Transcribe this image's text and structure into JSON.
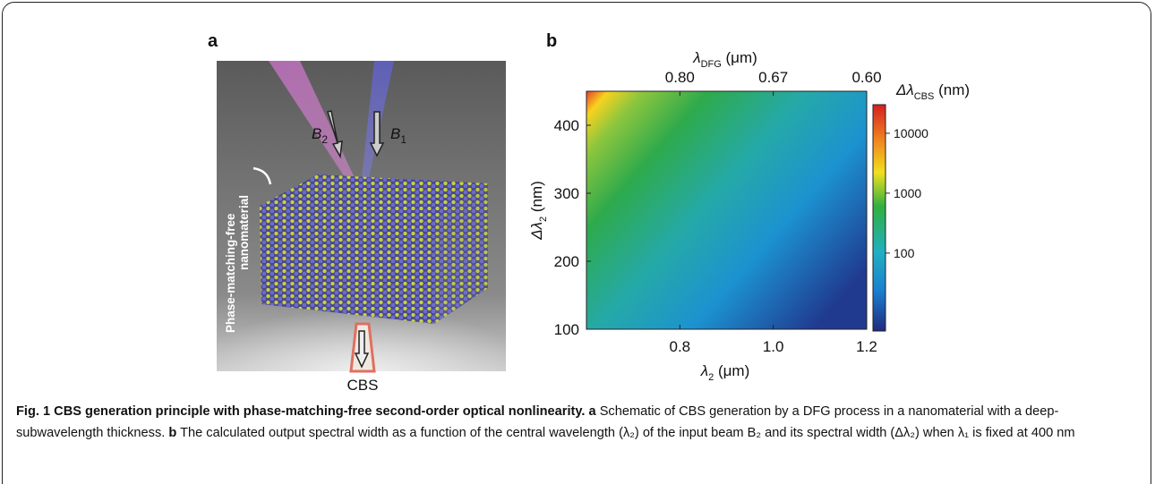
{
  "panel_a": {
    "label": "a",
    "beam_2": {
      "main": "B",
      "sub": "2"
    },
    "beam_1": {
      "main": "B",
      "sub": "1"
    },
    "material_label": [
      "Phase-matching-free",
      "nanomaterial"
    ],
    "output_label": "CBS"
  },
  "panel_b": {
    "label": "b",
    "x_label": {
      "main": "λ",
      "sub": "2",
      "unit": " (μm)"
    },
    "top_label": {
      "main": "λ",
      "sub": "DFG",
      "unit": " (μm)"
    },
    "y_label": {
      "main": "Δλ",
      "sub": "2",
      "unit": " (nm)"
    },
    "colorbar_label": {
      "main": "Δλ",
      "sub": "CBS",
      "unit": " (nm)"
    },
    "xlim": [
      0.6,
      1.2
    ],
    "xticks": [
      0.8,
      {
        "value": 1.0,
        "label": "1.0"
      },
      1.2
    ],
    "top_ticks": [
      {
        "value": 0.8,
        "label": "0.80"
      },
      {
        "value": 1.0,
        "label": "0.67"
      },
      {
        "value": 1.2,
        "label": "0.60"
      }
    ],
    "ylim": [
      100,
      450
    ],
    "yticks": [
      100,
      200,
      300,
      400
    ],
    "clim": [
      5,
      30000
    ],
    "log_colorbar": true,
    "cticks": [
      100,
      1000,
      10000
    ]
  },
  "caption": [
    {
      "bold": true,
      "text": "Fig. 1 CBS generation principle with phase-matching-free second-order optical nonlinearity."
    },
    {
      "bold": true,
      "text": " a"
    },
    {
      "bold": false,
      "text": " Schematic of CBS generation by a DFG process in a nanomaterial with a deep-subwavelength thickness."
    },
    {
      "bold": true,
      "text": " b"
    },
    {
      "bold": false,
      "text": " The calculated output spectral width as a function of the central wavelength (λ₂) of the input beam B₂ and its spectral width (Δλ₂) when λ₁ is fixed at 400 nm"
    }
  ]
}
